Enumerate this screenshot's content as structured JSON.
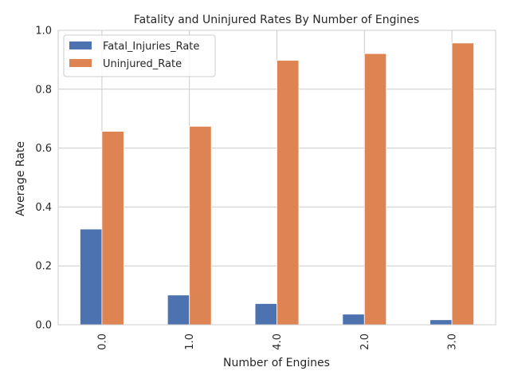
{
  "chart_data": {
    "type": "bar",
    "title": "Fatality and Uninjured Rates By Number of Engines",
    "xlabel": "Number of Engines",
    "ylabel": "Average Rate",
    "categories": [
      "0.0",
      "1.0",
      "4.0",
      "2.0",
      "3.0"
    ],
    "series": [
      {
        "name": "Fatal_Injuries_Rate",
        "color": "#4c72b0",
        "values": [
          0.325,
          0.101,
          0.072,
          0.036,
          0.017
        ]
      },
      {
        "name": "Uninjured_Rate",
        "color": "#dd8452",
        "values": [
          0.657,
          0.674,
          0.898,
          0.921,
          0.957
        ]
      }
    ],
    "ylim": [
      0,
      1.0
    ],
    "yticks": [
      "0.0",
      "0.2",
      "0.4",
      "0.6",
      "0.8",
      "1.0"
    ],
    "grid": true,
    "legend": "top-left"
  }
}
